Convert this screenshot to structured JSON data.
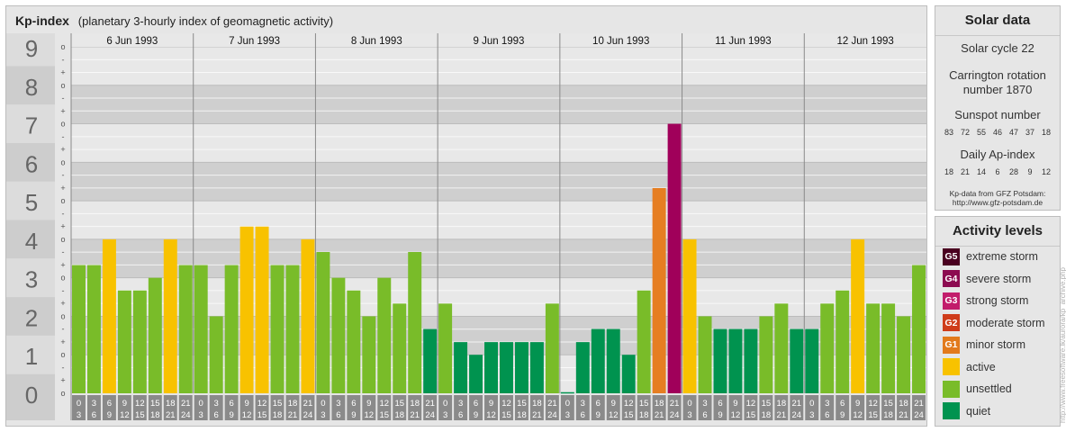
{
  "header": {
    "title": "Kp-index",
    "subtitle": "(planetary 3-hourly index of geomagnetic activity)"
  },
  "chart_data": {
    "type": "bar",
    "ylim": [
      0,
      9
    ],
    "y_major_ticks": [
      "0",
      "1",
      "2",
      "3",
      "4",
      "5",
      "6",
      "7",
      "8",
      "9"
    ],
    "y_minor_marks": [
      "o",
      "+",
      "-"
    ],
    "days": [
      "6 Jun 1993",
      "7 Jun 1993",
      "8 Jun 1993",
      "9 Jun 1993",
      "10 Jun 1993",
      "11 Jun 1993",
      "12 Jun 1993"
    ],
    "interval_start_labels": [
      "0",
      "3",
      "6",
      "9",
      "12",
      "15",
      "18",
      "21"
    ],
    "interval_end_labels": [
      "3",
      "6",
      "9",
      "12",
      "15",
      "18",
      "21",
      "24"
    ],
    "values": [
      3.33,
      3.33,
      4.0,
      2.67,
      2.67,
      3.0,
      4.0,
      3.33,
      3.33,
      2.0,
      3.33,
      4.33,
      4.33,
      3.33,
      3.33,
      4.0,
      3.67,
      3.0,
      2.67,
      2.0,
      3.0,
      2.33,
      3.67,
      1.67,
      2.33,
      1.33,
      1.0,
      1.33,
      1.33,
      1.33,
      1.33,
      2.33,
      0.0,
      1.33,
      1.67,
      1.67,
      1.0,
      2.67,
      5.33,
      7.0,
      4.0,
      2.0,
      1.67,
      1.67,
      1.67,
      2.0,
      2.33,
      1.67,
      1.67,
      2.33,
      2.67,
      4.0,
      2.33,
      2.33,
      2.0,
      3.33
    ],
    "level_colors": {
      "quiet": "#00934f",
      "unsettled": "#79bc29",
      "active": "#f8c200",
      "G1": "#e67e22",
      "G4": "#a0005a"
    },
    "grid": true
  },
  "solar": {
    "title": "Solar data",
    "cycle": "Solar cycle 22",
    "carrington_line1": "Carrington rotation",
    "carrington_line2": "number 1870",
    "sunspot_title": "Sunspot number",
    "sunspot_values": [
      "83",
      "72",
      "55",
      "46",
      "47",
      "37",
      "18"
    ],
    "ap_title": "Daily Ap-index",
    "ap_values": [
      "18",
      "21",
      "14",
      "6",
      "28",
      "9",
      "12"
    ],
    "credit_line1": "Kp-data from GFZ Potsdam:",
    "credit_line2": "http://www.gfz-potsdam.de"
  },
  "activity": {
    "title": "Activity levels",
    "levels": [
      {
        "code": "G5",
        "label": "extreme storm",
        "color": "#4a0020"
      },
      {
        "code": "G4",
        "label": "severe storm",
        "color": "#8c0a50"
      },
      {
        "code": "G3",
        "label": "strong storm",
        "color": "#c21c6b"
      },
      {
        "code": "G2",
        "label": "moderate storm",
        "color": "#cf3c1a"
      },
      {
        "code": "G1",
        "label": "minor storm",
        "color": "#e27a1c"
      },
      {
        "code": "",
        "label": "active",
        "color": "#f8c200"
      },
      {
        "code": "",
        "label": "unsettled",
        "color": "#79bc29"
      },
      {
        "code": "",
        "label": "quiet",
        "color": "#00934f"
      }
    ]
  },
  "watermark": "http://www.freesoftware.lk/aurora/kp_archive.php"
}
